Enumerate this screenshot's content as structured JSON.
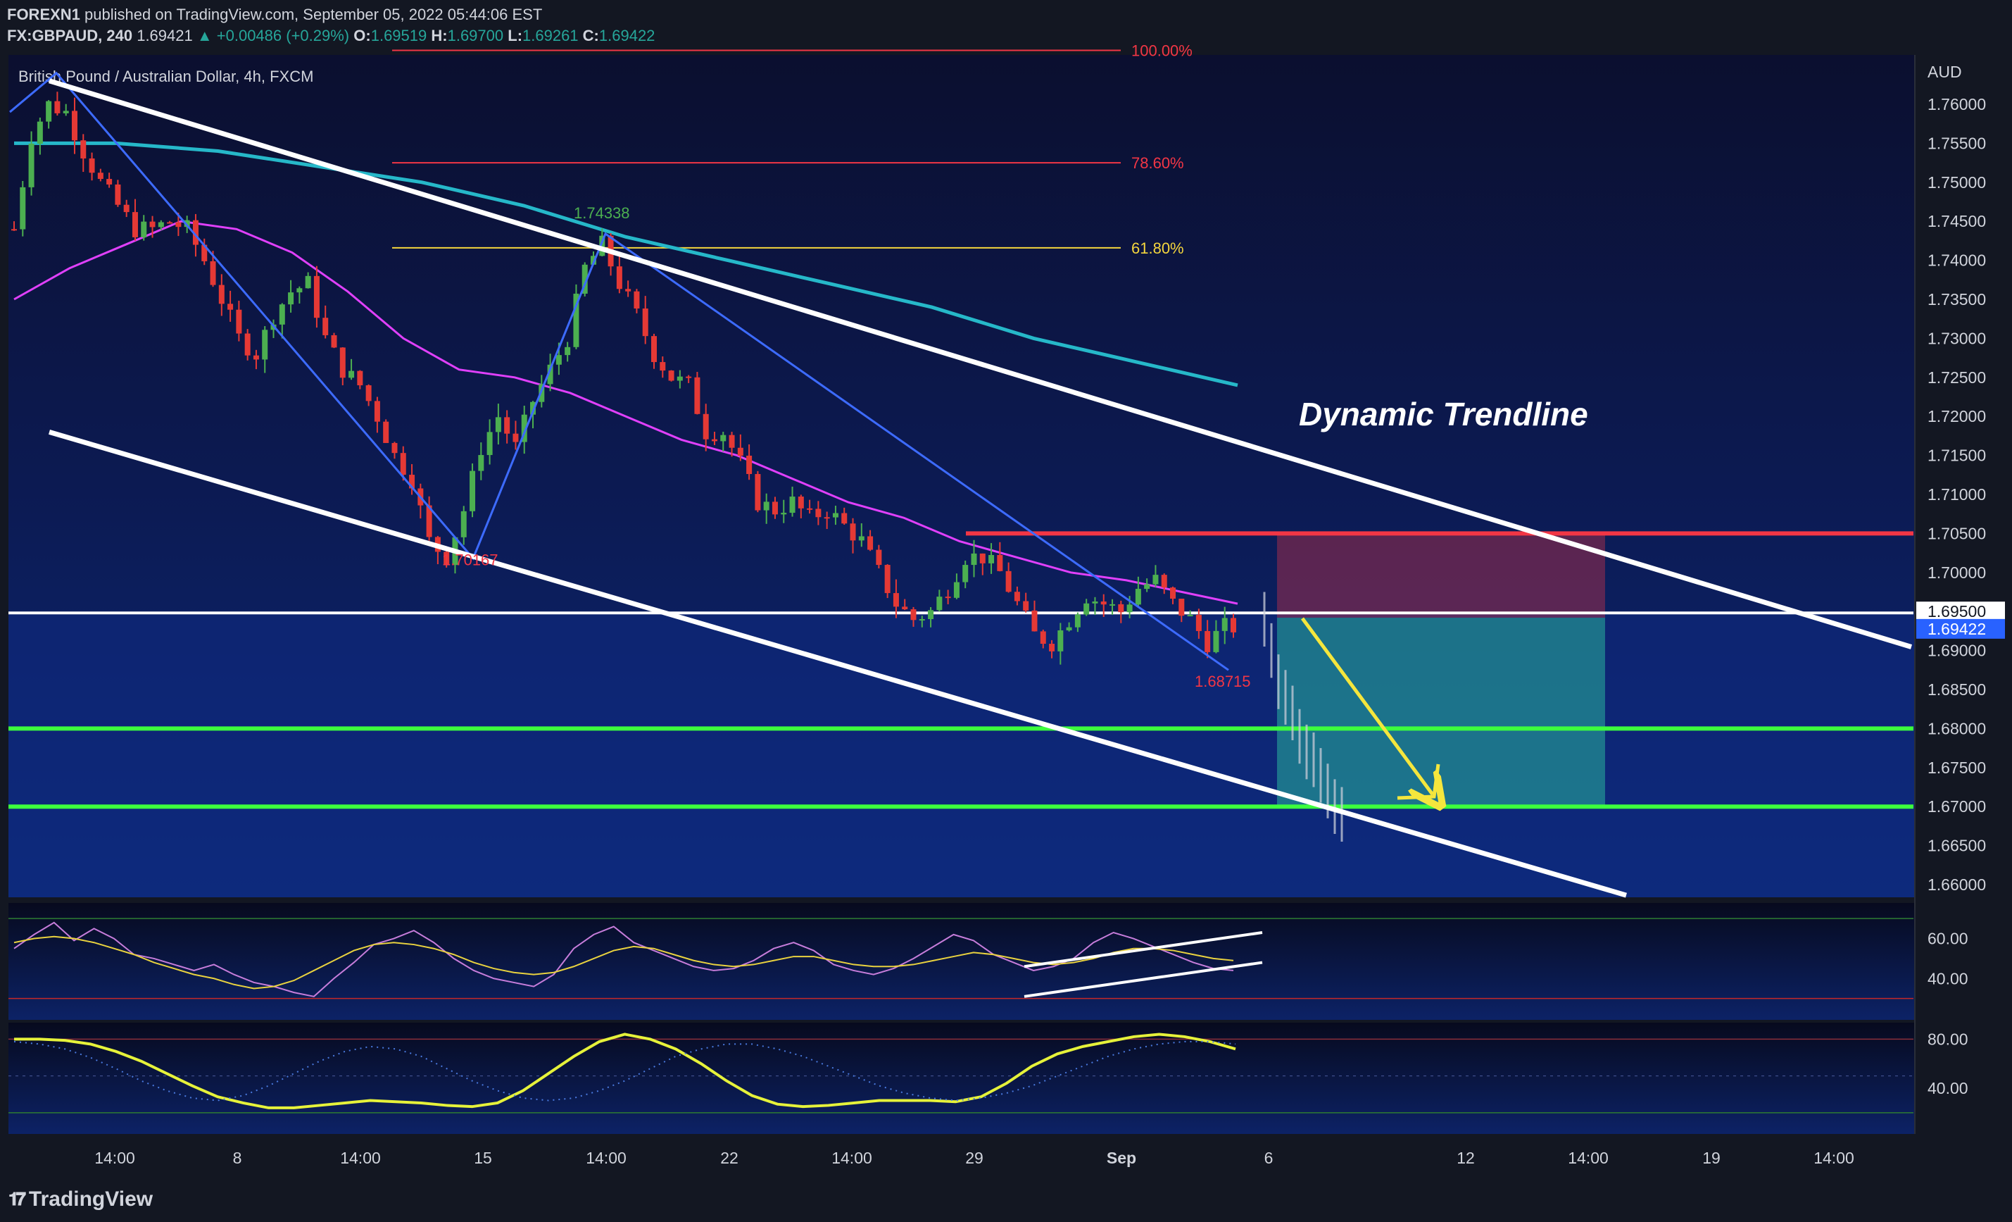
{
  "header": {
    "author": "FOREXN1",
    "published": "published on TradingView.com, September 05, 2022 05:44:06 EST",
    "symbol": "FX:GBPAUD, 240",
    "last": "1.69421",
    "change_arrow": "▲",
    "change": "+0.00486 (+0.29%)",
    "o_label": "O:",
    "o": "1.69519",
    "h_label": "H:",
    "h": "1.69700",
    "l_label": "L:",
    "l": "1.69261",
    "c_label": "C:",
    "c": "1.69422"
  },
  "chart_title": "British Pound / Australian Dollar, 4h, FXCM",
  "currency": "AUD",
  "annotation": "Dynamic Trendline",
  "fib_levels": [
    {
      "label": "100.00%",
      "color": "#f23645"
    },
    {
      "label": "78.60%",
      "color": "#f23645"
    },
    {
      "label": "61.80%",
      "color": "#f5d63d"
    }
  ],
  "price_marks": {
    "high": "1.74338",
    "low_mid": "1.70167",
    "recent_low": "1.68715",
    "horizontal_label": "1.69500",
    "last_price_label": "1.69422"
  },
  "footer": {
    "brand": "TradingView"
  },
  "colors": {
    "background": "#131722",
    "panel_top": "#0c1036",
    "panel_bottom": "#0d2a78",
    "bull": "#4caf50",
    "bear": "#e53935",
    "ma_fast": "#e040fb",
    "ma_slow": "#26b8c9",
    "resistance": "#f23645",
    "support": "#3dff3d",
    "trendline": "#ffffff",
    "zigzag": "#3d6bff",
    "arrow": "#f5e63d"
  },
  "chart_data": [
    {
      "type": "candlestick",
      "title": "British Pound / Australian Dollar, 4h, FXCM",
      "ylabel": "AUD",
      "ylim": [
        1.659,
        1.7669
      ],
      "y_ticks": [
        "1.76000",
        "1.75500",
        "1.75000",
        "1.74500",
        "1.74000",
        "1.73500",
        "1.73000",
        "1.72500",
        "1.72000",
        "1.71500",
        "1.71000",
        "1.70500",
        "1.70000",
        "1.69500",
        "1.69000",
        "1.68500",
        "1.68000",
        "1.67500",
        "1.67000",
        "1.66500",
        "1.66000"
      ],
      "x_ticks": [
        "14:00",
        "8",
        "14:00",
        "15",
        "14:00",
        "22",
        "14:00",
        "29",
        "Sep",
        "6",
        "12",
        "14:00",
        "19",
        "14:00"
      ],
      "close_path": [
        1.744,
        1.756,
        1.76,
        1.759,
        1.754,
        1.75,
        1.747,
        1.744,
        1.744,
        1.745,
        1.744,
        1.74,
        1.735,
        1.73,
        1.728,
        1.733,
        1.736,
        1.737,
        1.73,
        1.726,
        1.724,
        1.72,
        1.715,
        1.712,
        1.704,
        1.702,
        1.708,
        1.716,
        1.72,
        1.716,
        1.722,
        1.726,
        1.73,
        1.739,
        1.742,
        1.737,
        1.733,
        1.728,
        1.725,
        1.724,
        1.718,
        1.718,
        1.714,
        1.709,
        1.708,
        1.709,
        1.707,
        1.708,
        1.706,
        1.704,
        1.7,
        1.696,
        1.694,
        1.695,
        1.698,
        1.702,
        1.702,
        1.7,
        1.696,
        1.692,
        1.691,
        1.694,
        1.697,
        1.696,
        1.695,
        1.698,
        1.699,
        1.696,
        1.694,
        1.691,
        1.693
      ],
      "fibonacci": {
        "100.00%": 1.7669,
        "78.60%": 1.7525,
        "61.80%": 1.7416
      },
      "levels": {
        "resistance": 1.705,
        "horizontal": 1.695,
        "support_1": 1.68,
        "support_2": 1.67
      },
      "price_labels": {
        "swing_high": 1.74338,
        "swing_low": 1.70167,
        "recent_low": 1.68715,
        "horizontal": 1.695,
        "last": 1.69422
      },
      "moving_averages": [
        {
          "color": "#e040fb",
          "values": [
            1.735,
            1.739,
            1.742,
            1.745,
            1.744,
            1.741,
            1.736,
            1.73,
            1.726,
            1.725,
            1.723,
            1.72,
            1.717,
            1.715,
            1.712,
            1.709,
            1.707,
            1.704,
            1.702,
            1.7,
            1.699,
            1.6975,
            1.696
          ]
        },
        {
          "color": "#26b8c9",
          "values": [
            1.755,
            1.755,
            1.754,
            1.752,
            1.75,
            1.747,
            1.743,
            1.74,
            1.737,
            1.734,
            1.73,
            1.727,
            1.724
          ]
        }
      ],
      "trendlines": {
        "upper": [
          [
            1.763,
            1.691
          ]
        ],
        "lower": [
          [
            1.718,
            1.659
          ]
        ]
      },
      "trade_box": {
        "entry": 1.6942,
        "stop": 1.705,
        "target": 1.67
      }
    },
    {
      "type": "line",
      "title": "",
      "y_ticks": [
        "60.00",
        "40.00"
      ],
      "series": [
        {
          "values": [
            55,
            62,
            68,
            59,
            65,
            60,
            52,
            50,
            47,
            44,
            47,
            42,
            38,
            36,
            33,
            31,
            40,
            48,
            57,
            60,
            64,
            58,
            50,
            44,
            40,
            38,
            36,
            42,
            55,
            62,
            66,
            58,
            54,
            50,
            46,
            44,
            45,
            49,
            55,
            58,
            54,
            47,
            44,
            42,
            45,
            50,
            56,
            62,
            59,
            52,
            48,
            44,
            46,
            50,
            58,
            63,
            60,
            56,
            52,
            48,
            45,
            44
          ]
        },
        {
          "values": [
            58,
            60,
            61,
            60,
            58,
            55,
            52,
            48,
            45,
            42,
            40,
            37,
            35,
            36,
            39,
            44,
            49,
            54,
            57,
            58,
            57,
            55,
            52,
            48,
            45,
            43,
            42,
            43,
            46,
            50,
            54,
            56,
            55,
            52,
            49,
            47,
            46,
            47,
            49,
            51,
            51,
            49,
            47,
            46,
            46,
            47,
            49,
            51,
            53,
            52,
            50,
            48,
            47,
            48,
            50,
            53,
            55,
            55,
            54,
            52,
            50,
            49
          ]
        }
      ],
      "trend_channel": true
    },
    {
      "type": "line",
      "title": "",
      "y_ticks": [
        "80.00",
        "40.00"
      ],
      "series": [
        {
          "values": [
            80,
            80,
            79,
            76,
            70,
            62,
            52,
            42,
            33,
            28,
            24,
            24,
            26,
            28,
            30,
            29,
            28,
            26,
            25,
            28,
            38,
            52,
            66,
            78,
            84,
            80,
            72,
            60,
            46,
            34,
            27,
            25,
            26,
            28,
            30,
            30,
            30,
            29,
            33,
            44,
            58,
            68,
            74,
            78,
            82,
            84,
            82,
            78,
            72
          ]
        },
        {
          "values": [
            78,
            76,
            72,
            65,
            56,
            46,
            38,
            32,
            30,
            34,
            42,
            52,
            62,
            70,
            74,
            72,
            66,
            56,
            46,
            38,
            32,
            30,
            32,
            38,
            46,
            56,
            66,
            72,
            76,
            76,
            72,
            66,
            58,
            50,
            42,
            36,
            32,
            30,
            32,
            36,
            42,
            50,
            58,
            66,
            72,
            76,
            78,
            78,
            76
          ]
        }
      ]
    }
  ]
}
